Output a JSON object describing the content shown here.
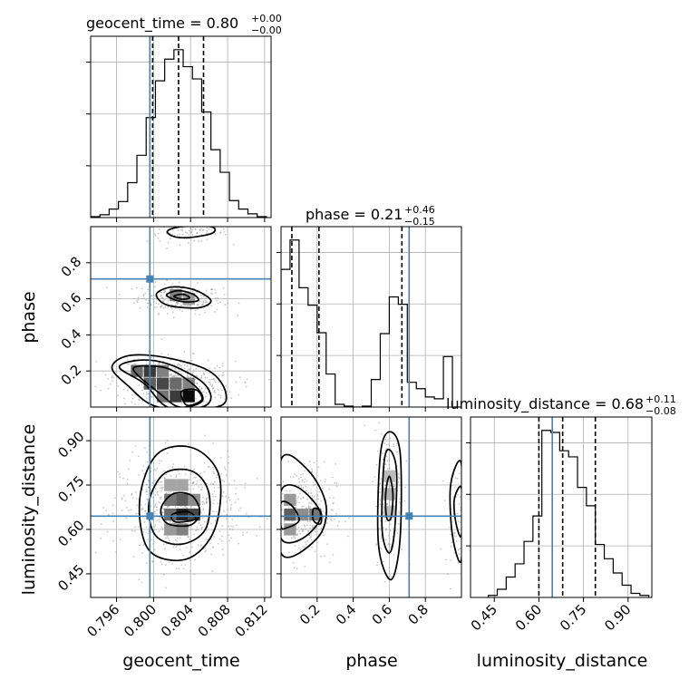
{
  "chart_data": {
    "type": "corner",
    "parameters": [
      {
        "key": "geocent_time",
        "label": "geocent_time",
        "range": [
          0.7932,
          0.8127
        ],
        "ticks": [
          0.796,
          0.8,
          0.804,
          0.808,
          0.812
        ],
        "tick_labels": [
          "0.796",
          "0.800",
          "0.804",
          "0.808",
          "0.812"
        ],
        "truth": 0.7996,
        "quantiles": [
          0.7999,
          0.8027,
          0.8054
        ],
        "title": {
          "prefix": "geocent_time = 0.80",
          "upper": "+0.00",
          "lower": "−0.00"
        },
        "hist": {
          "edges": [
            0.7932,
            0.7942,
            0.7952,
            0.7962,
            0.7972,
            0.7982,
            0.7992,
            0.8002,
            0.8012,
            0.8022,
            0.8032,
            0.8042,
            0.8052,
            0.8062,
            0.8072,
            0.8082,
            0.8092,
            0.8102,
            0.8112,
            0.8122
          ],
          "counts": [
            1,
            3,
            9,
            17,
            37,
            66,
            106,
            145,
            168,
            178,
            160,
            147,
            112,
            72,
            48,
            18,
            9,
            4,
            1
          ]
        }
      },
      {
        "key": "phase",
        "label": "phase",
        "range": [
          0.0,
          1.0
        ],
        "ticks": [
          0.2,
          0.4,
          0.6,
          0.8
        ],
        "tick_labels": [
          "0.2",
          "0.4",
          "0.6",
          "0.8"
        ],
        "truth": 0.71,
        "quantiles": [
          0.06,
          0.21,
          0.67
        ],
        "title": {
          "prefix": "phase = 0.21",
          "upper": "+0.46",
          "lower": "−0.15"
        },
        "hist": {
          "edges": [
            0.0,
            0.05,
            0.1,
            0.15,
            0.2,
            0.25,
            0.3,
            0.35,
            0.4,
            0.45,
            0.5,
            0.55,
            0.6,
            0.65,
            0.7,
            0.75,
            0.8,
            0.85,
            0.9,
            0.95,
            1.0
          ],
          "counts": [
            150,
            182,
            130,
            111,
            81,
            36,
            3,
            1,
            0,
            1,
            30,
            80,
            120,
            112,
            27,
            20,
            11,
            9,
            55,
            0
          ]
        }
      },
      {
        "key": "luminosity_distance",
        "label": "luminosity_distance",
        "range": [
          0.37,
          0.98
        ],
        "ticks": [
          0.45,
          0.6,
          0.75,
          0.9
        ],
        "tick_labels": [
          "0.45",
          "0.60",
          "0.75",
          "0.90"
        ],
        "truth": 0.645,
        "quantiles": [
          0.6,
          0.68,
          0.79
        ],
        "title": {
          "prefix": "luminosity_distance = 0.68",
          "upper": "+0.11",
          "lower": "−0.08"
        },
        "hist": {
          "edges": [
            0.43,
            0.46,
            0.49,
            0.52,
            0.55,
            0.58,
            0.61,
            0.64,
            0.67,
            0.7,
            0.73,
            0.76,
            0.79,
            0.82,
            0.85,
            0.88,
            0.91,
            0.94,
            0.97
          ],
          "counts": [
            2,
            8,
            20,
            33,
            55,
            80,
            164,
            162,
            144,
            138,
            108,
            90,
            52,
            38,
            24,
            12,
            4,
            2
          ]
        }
      }
    ],
    "pairs": [
      {
        "x": "geocent_time",
        "y": "phase",
        "clusters": [
          {
            "cx": 0.8029,
            "cy": 0.6,
            "sx": 0.0023,
            "sy": 0.04,
            "rot": -0.12,
            "n": 260
          },
          {
            "cx": 0.8037,
            "cy": 0.965,
            "sx": 0.0022,
            "sy": 0.025,
            "rot": 0,
            "n": 90
          },
          {
            "cx": 0.8023,
            "cy": 0.14,
            "sx": 0.0033,
            "sy": 0.07,
            "rot": -0.2,
            "n": 420
          }
        ],
        "contours": [
          [
            [
              [
                0.8003,
                0.625
              ],
              [
                0.8019,
                0.665
              ],
              [
                0.8044,
                0.65
              ],
              [
                0.8062,
                0.59
              ],
              [
                0.8048,
                0.55
              ],
              [
                0.8015,
                0.565
              ]
            ],
            [
              [
                0.8014,
                0.62
              ],
              [
                0.8027,
                0.645
              ],
              [
                0.8043,
                0.625
              ],
              [
                0.8048,
                0.59
              ],
              [
                0.803,
                0.585
              ]
            ],
            [
              [
                0.8022,
                0.615
              ],
              [
                0.8032,
                0.625
              ],
              [
                0.8039,
                0.605
              ],
              [
                0.803,
                0.598
              ]
            ]
          ],
          [
            [
              [
                0.8015,
                0.975
              ],
              [
                0.803,
                1.0
              ],
              [
                0.8062,
                1.0
              ],
              [
                0.8064,
                0.965
              ],
              [
                0.804,
                0.94
              ],
              [
                0.8022,
                0.945
              ]
            ]
          ],
          [
            [
              [
                0.7955,
                0.22
              ],
              [
                0.7973,
                0.285
              ],
              [
                0.8013,
                0.275
              ],
              [
                0.806,
                0.2
              ],
              [
                0.8078,
                0.08
              ],
              [
                0.8068,
                0.0
              ],
              [
                0.8005,
                0.0
              ],
              [
                0.7972,
                0.12
              ]
            ],
            [
              [
                0.7963,
                0.22
              ],
              [
                0.7985,
                0.26
              ],
              [
                0.8015,
                0.24
              ],
              [
                0.805,
                0.15
              ],
              [
                0.8062,
                0.06
              ],
              [
                0.8052,
                0.0
              ],
              [
                0.8015,
                0.0
              ],
              [
                0.799,
                0.13
              ]
            ],
            [
              [
                0.7978,
                0.21
              ],
              [
                0.8005,
                0.225
              ],
              [
                0.8025,
                0.19
              ],
              [
                0.8048,
                0.1
              ],
              [
                0.8052,
                0.03
              ],
              [
                0.8028,
                0.0
              ],
              [
                0.8008,
                0.07
              ]
            ],
            [
              [
                0.803,
                0.085
              ],
              [
                0.8046,
                0.095
              ],
              [
                0.8052,
                0.04
              ],
              [
                0.8036,
                0.01
              ]
            ]
          ]
        ],
        "cells": [
          {
            "x": 0.7982,
            "y": 0.2,
            "d": 0.55
          },
          {
            "x": 0.7996,
            "y": 0.2,
            "d": 0.75
          },
          {
            "x": 0.801,
            "y": 0.2,
            "d": 0.45
          },
          {
            "x": 0.7996,
            "y": 0.13,
            "d": 0.6
          },
          {
            "x": 0.801,
            "y": 0.13,
            "d": 0.7
          },
          {
            "x": 0.8024,
            "y": 0.13,
            "d": 0.55
          },
          {
            "x": 0.801,
            "y": 0.06,
            "d": 0.5
          },
          {
            "x": 0.8024,
            "y": 0.06,
            "d": 0.75
          },
          {
            "x": 0.8038,
            "y": 0.06,
            "d": 0.95
          },
          {
            "x": 0.8038,
            "y": 0.13,
            "d": 0.45
          },
          {
            "x": 0.8024,
            "y": 0.62,
            "d": 0.45
          },
          {
            "x": 0.8038,
            "y": 0.6,
            "d": 0.35
          }
        ]
      },
      {
        "x": "geocent_time",
        "y": "luminosity_distance",
        "clusters": [
          {
            "cx": 0.8028,
            "cy": 0.67,
            "sx": 0.0032,
            "sy": 0.085,
            "rot": 0,
            "n": 650
          }
        ],
        "contours": [
          [
            [
              [
                0.7985,
                0.7
              ],
              [
                0.8004,
                0.855
              ],
              [
                0.8043,
                0.875
              ],
              [
                0.8071,
                0.78
              ],
              [
                0.8066,
                0.6
              ],
              [
                0.8036,
                0.5
              ],
              [
                0.7995,
                0.53
              ]
            ],
            [
              [
                0.7995,
                0.69
              ],
              [
                0.8012,
                0.79
              ],
              [
                0.8043,
                0.795
              ],
              [
                0.806,
                0.72
              ],
              [
                0.8056,
                0.6
              ],
              [
                0.803,
                0.55
              ],
              [
                0.8002,
                0.58
              ]
            ],
            [
              [
                0.8008,
                0.67
              ],
              [
                0.8021,
                0.72
              ],
              [
                0.8041,
                0.715
              ],
              [
                0.805,
                0.66
              ],
              [
                0.804,
                0.615
              ],
              [
                0.8015,
                0.62
              ]
            ],
            [
              [
                0.802,
                0.65
              ],
              [
                0.8037,
                0.66
              ],
              [
                0.8045,
                0.635
              ],
              [
                0.8024,
                0.625
              ]
            ]
          ]
        ],
        "cells": [
          {
            "x": 0.8018,
            "y": 0.75,
            "d": 0.3
          },
          {
            "x": 0.8031,
            "y": 0.75,
            "d": 0.3
          },
          {
            "x": 0.8018,
            "y": 0.7,
            "d": 0.5
          },
          {
            "x": 0.8031,
            "y": 0.7,
            "d": 0.6
          },
          {
            "x": 0.8044,
            "y": 0.7,
            "d": 0.4
          },
          {
            "x": 0.8018,
            "y": 0.65,
            "d": 0.55
          },
          {
            "x": 0.8031,
            "y": 0.65,
            "d": 0.85
          },
          {
            "x": 0.8044,
            "y": 0.65,
            "d": 0.7
          },
          {
            "x": 0.8031,
            "y": 0.6,
            "d": 0.45
          },
          {
            "x": 0.8018,
            "y": 0.6,
            "d": 0.35
          }
        ]
      },
      {
        "x": "phase",
        "y": "luminosity_distance",
        "clusters": [
          {
            "cx": 0.12,
            "cy": 0.66,
            "sx": 0.09,
            "sy": 0.08,
            "rot": 0,
            "n": 300
          },
          {
            "cx": 0.6,
            "cy": 0.72,
            "sx": 0.04,
            "sy": 0.11,
            "rot": 0,
            "n": 220
          },
          {
            "cx": 0.97,
            "cy": 0.64,
            "sx": 0.03,
            "sy": 0.08,
            "rot": 0,
            "n": 60
          }
        ],
        "contours": [
          [
            [
              [
                0.0,
                0.835
              ],
              [
                0.15,
                0.8
              ],
              [
                0.25,
                0.68
              ],
              [
                0.2,
                0.57
              ],
              [
                0.0,
                0.52
              ]
            ],
            [
              [
                0.0,
                0.73
              ],
              [
                0.1,
                0.74
              ],
              [
                0.22,
                0.65
              ],
              [
                0.12,
                0.57
              ],
              [
                0.0,
                0.57
              ]
            ],
            [
              [
                0.0,
                0.69
              ],
              [
                0.06,
                0.68
              ],
              [
                0.1,
                0.63
              ],
              [
                0.03,
                0.605
              ],
              [
                0.0,
                0.61
              ]
            ],
            [
              [
                0.18,
                0.67
              ],
              [
                0.22,
                0.66
              ],
              [
                0.22,
                0.62
              ],
              [
                0.18,
                0.63
              ]
            ]
          ],
          [
            [
              [
                0.55,
                0.85
              ],
              [
                0.6,
                0.93
              ],
              [
                0.66,
                0.86
              ],
              [
                0.66,
                0.57
              ],
              [
                0.61,
                0.43
              ],
              [
                0.54,
                0.55
              ]
            ],
            [
              [
                0.57,
                0.82
              ],
              [
                0.6,
                0.87
              ],
              [
                0.64,
                0.8
              ],
              [
                0.63,
                0.6
              ],
              [
                0.6,
                0.52
              ],
              [
                0.56,
                0.6
              ]
            ],
            [
              [
                0.58,
                0.72
              ],
              [
                0.6,
                0.78
              ],
              [
                0.62,
                0.72
              ],
              [
                0.61,
                0.64
              ],
              [
                0.585,
                0.64
              ]
            ]
          ],
          [
            [
              [
                0.94,
                0.75
              ],
              [
                1.0,
                0.82
              ],
              [
                1.0,
                0.5
              ],
              [
                0.95,
                0.58
              ]
            ],
            [
              [
                0.96,
                0.7
              ],
              [
                1.0,
                0.74
              ],
              [
                1.0,
                0.58
              ],
              [
                0.97,
                0.62
              ]
            ]
          ]
        ],
        "cells": [
          {
            "x": 0.05,
            "y": 0.65,
            "d": 0.6
          },
          {
            "x": 0.12,
            "y": 0.65,
            "d": 0.4
          },
          {
            "x": 0.19,
            "y": 0.65,
            "d": 0.5
          },
          {
            "x": 0.05,
            "y": 0.7,
            "d": 0.35
          },
          {
            "x": 0.05,
            "y": 0.6,
            "d": 0.35
          },
          {
            "x": 0.6,
            "y": 0.72,
            "d": 0.25
          },
          {
            "x": 0.6,
            "y": 0.66,
            "d": 0.2
          },
          {
            "x": 0.6,
            "y": 0.78,
            "d": 0.2
          }
        ]
      }
    ],
    "grid": true,
    "truth_color": "#4682b4",
    "line_color": "#000000"
  }
}
